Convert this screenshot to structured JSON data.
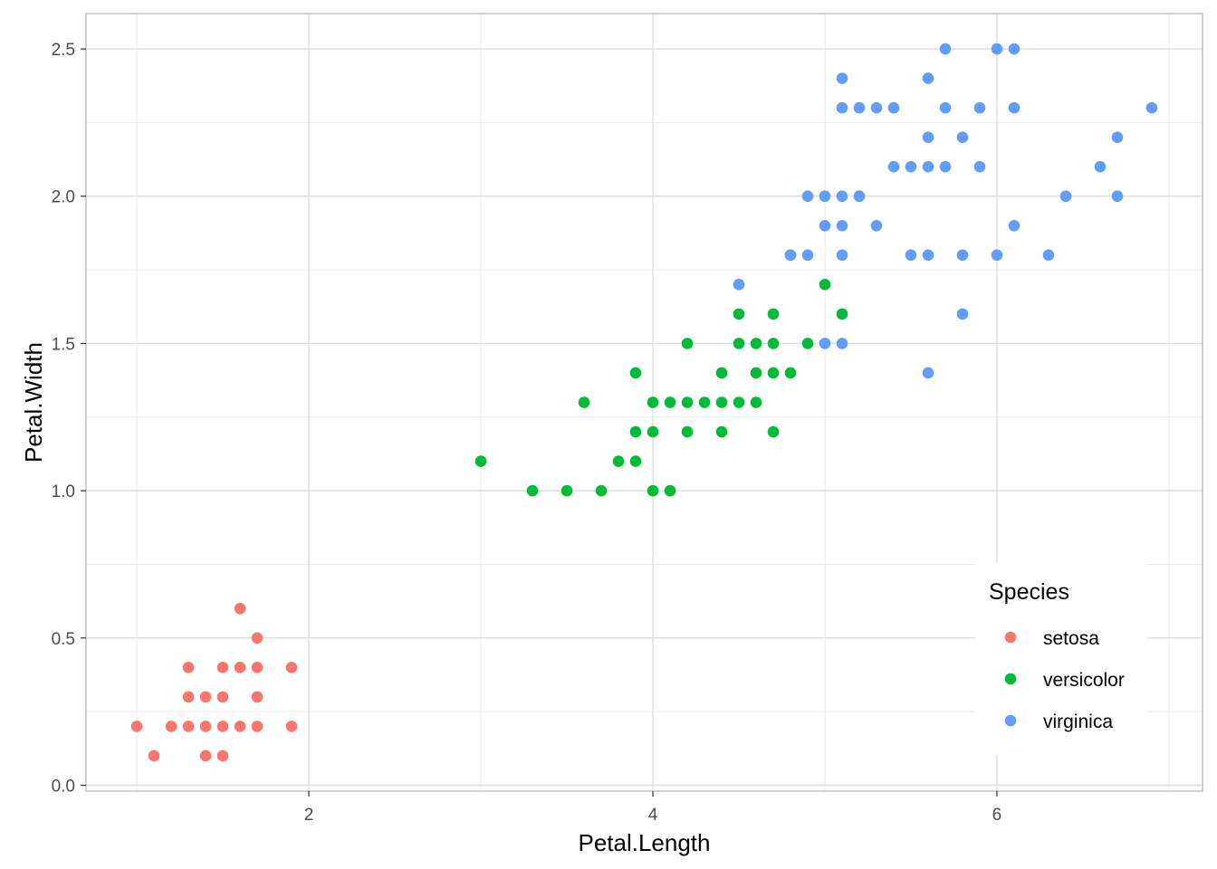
{
  "chart_data": {
    "type": "scatter",
    "title": "",
    "xlabel": "Petal.Length",
    "ylabel": "Petal.Width",
    "xlim": [
      0.705,
      7.195
    ],
    "ylim": [
      -0.02,
      2.62
    ],
    "x_ticks": [
      2,
      4,
      6
    ],
    "x_tick_labels": [
      "2",
      "4",
      "6"
    ],
    "y_ticks": [
      0.0,
      0.5,
      1.0,
      1.5,
      2.0,
      2.5
    ],
    "y_tick_labels": [
      "0.0",
      "0.5",
      "1.0",
      "1.5",
      "2.0",
      "2.5"
    ],
    "grid": true,
    "legend": {
      "title": "Species",
      "position": "bottom-right, inside plot",
      "entries": [
        "setosa",
        "versicolor",
        "virginica"
      ]
    },
    "series": [
      {
        "name": "setosa",
        "color": "#F8766D",
        "points": [
          [
            1.0,
            0.2
          ],
          [
            1.1,
            0.1
          ],
          [
            1.2,
            0.2
          ],
          [
            1.3,
            0.2
          ],
          [
            1.3,
            0.3
          ],
          [
            1.3,
            0.4
          ],
          [
            1.4,
            0.1
          ],
          [
            1.4,
            0.2
          ],
          [
            1.4,
            0.3
          ],
          [
            1.5,
            0.1
          ],
          [
            1.5,
            0.2
          ],
          [
            1.5,
            0.3
          ],
          [
            1.5,
            0.4
          ],
          [
            1.6,
            0.2
          ],
          [
            1.6,
            0.4
          ],
          [
            1.6,
            0.6
          ],
          [
            1.7,
            0.2
          ],
          [
            1.7,
            0.3
          ],
          [
            1.7,
            0.4
          ],
          [
            1.7,
            0.5
          ],
          [
            1.9,
            0.2
          ],
          [
            1.9,
            0.4
          ]
        ]
      },
      {
        "name": "versicolor",
        "color": "#00BA38",
        "points": [
          [
            3.0,
            1.1
          ],
          [
            3.3,
            1.0
          ],
          [
            3.5,
            1.0
          ],
          [
            3.6,
            1.3
          ],
          [
            3.7,
            1.0
          ],
          [
            3.8,
            1.1
          ],
          [
            3.9,
            1.1
          ],
          [
            3.9,
            1.2
          ],
          [
            3.9,
            1.4
          ],
          [
            4.0,
            1.0
          ],
          [
            4.0,
            1.2
          ],
          [
            4.0,
            1.3
          ],
          [
            4.1,
            1.0
          ],
          [
            4.1,
            1.3
          ],
          [
            4.2,
            1.2
          ],
          [
            4.2,
            1.3
          ],
          [
            4.2,
            1.5
          ],
          [
            4.3,
            1.3
          ],
          [
            4.4,
            1.2
          ],
          [
            4.4,
            1.3
          ],
          [
            4.4,
            1.4
          ],
          [
            4.5,
            1.3
          ],
          [
            4.5,
            1.5
          ],
          [
            4.5,
            1.6
          ],
          [
            4.6,
            1.3
          ],
          [
            4.6,
            1.4
          ],
          [
            4.6,
            1.5
          ],
          [
            4.7,
            1.2
          ],
          [
            4.7,
            1.4
          ],
          [
            4.7,
            1.5
          ],
          [
            4.7,
            1.6
          ],
          [
            4.8,
            1.4
          ],
          [
            4.8,
            1.8
          ],
          [
            4.9,
            1.5
          ],
          [
            5.0,
            1.7
          ],
          [
            5.1,
            1.6
          ]
        ]
      },
      {
        "name": "virginica",
        "color": "#619CFF",
        "points": [
          [
            4.5,
            1.7
          ],
          [
            4.8,
            1.8
          ],
          [
            4.9,
            1.8
          ],
          [
            4.9,
            2.0
          ],
          [
            5.0,
            1.5
          ],
          [
            5.0,
            1.9
          ],
          [
            5.0,
            2.0
          ],
          [
            5.1,
            1.5
          ],
          [
            5.1,
            1.8
          ],
          [
            5.1,
            1.9
          ],
          [
            5.1,
            2.0
          ],
          [
            5.1,
            2.3
          ],
          [
            5.1,
            2.4
          ],
          [
            5.2,
            2.0
          ],
          [
            5.2,
            2.3
          ],
          [
            5.3,
            1.9
          ],
          [
            5.3,
            2.3
          ],
          [
            5.4,
            2.1
          ],
          [
            5.4,
            2.3
          ],
          [
            5.5,
            1.8
          ],
          [
            5.5,
            2.1
          ],
          [
            5.6,
            1.4
          ],
          [
            5.6,
            1.8
          ],
          [
            5.6,
            2.1
          ],
          [
            5.6,
            2.2
          ],
          [
            5.6,
            2.4
          ],
          [
            5.7,
            2.1
          ],
          [
            5.7,
            2.3
          ],
          [
            5.7,
            2.5
          ],
          [
            5.8,
            1.6
          ],
          [
            5.8,
            1.8
          ],
          [
            5.8,
            2.2
          ],
          [
            5.9,
            2.1
          ],
          [
            5.9,
            2.3
          ],
          [
            6.0,
            1.8
          ],
          [
            6.0,
            2.5
          ],
          [
            6.1,
            1.9
          ],
          [
            6.1,
            2.3
          ],
          [
            6.1,
            2.5
          ],
          [
            6.3,
            1.8
          ],
          [
            6.4,
            2.0
          ],
          [
            6.6,
            2.1
          ],
          [
            6.7,
            2.0
          ],
          [
            6.7,
            2.2
          ],
          [
            6.9,
            2.3
          ]
        ]
      }
    ]
  }
}
